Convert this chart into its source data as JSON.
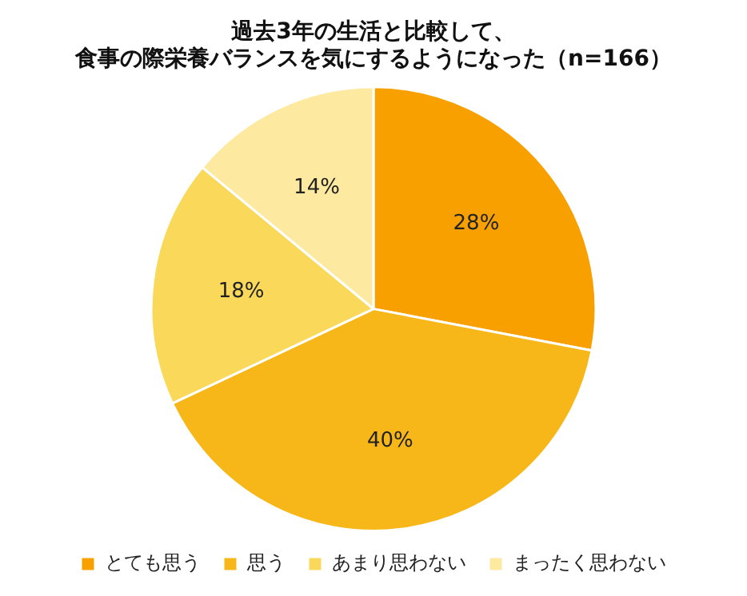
{
  "chart_data": {
    "type": "pie",
    "title": "過去3年の生活と比較して、食事の際栄養バランスを気にするようになった（n=166）",
    "categories": [
      "とても思う",
      "思う",
      "あまり思わない",
      "まったく思わない"
    ],
    "values": [
      28,
      40,
      18,
      14
    ],
    "colors": [
      "#f7a000",
      "#f7b719",
      "#fad95a",
      "#fdeaa0"
    ],
    "value_labels": [
      "28%",
      "40%",
      "18%",
      "14%"
    ],
    "legend": "bottom"
  }
}
